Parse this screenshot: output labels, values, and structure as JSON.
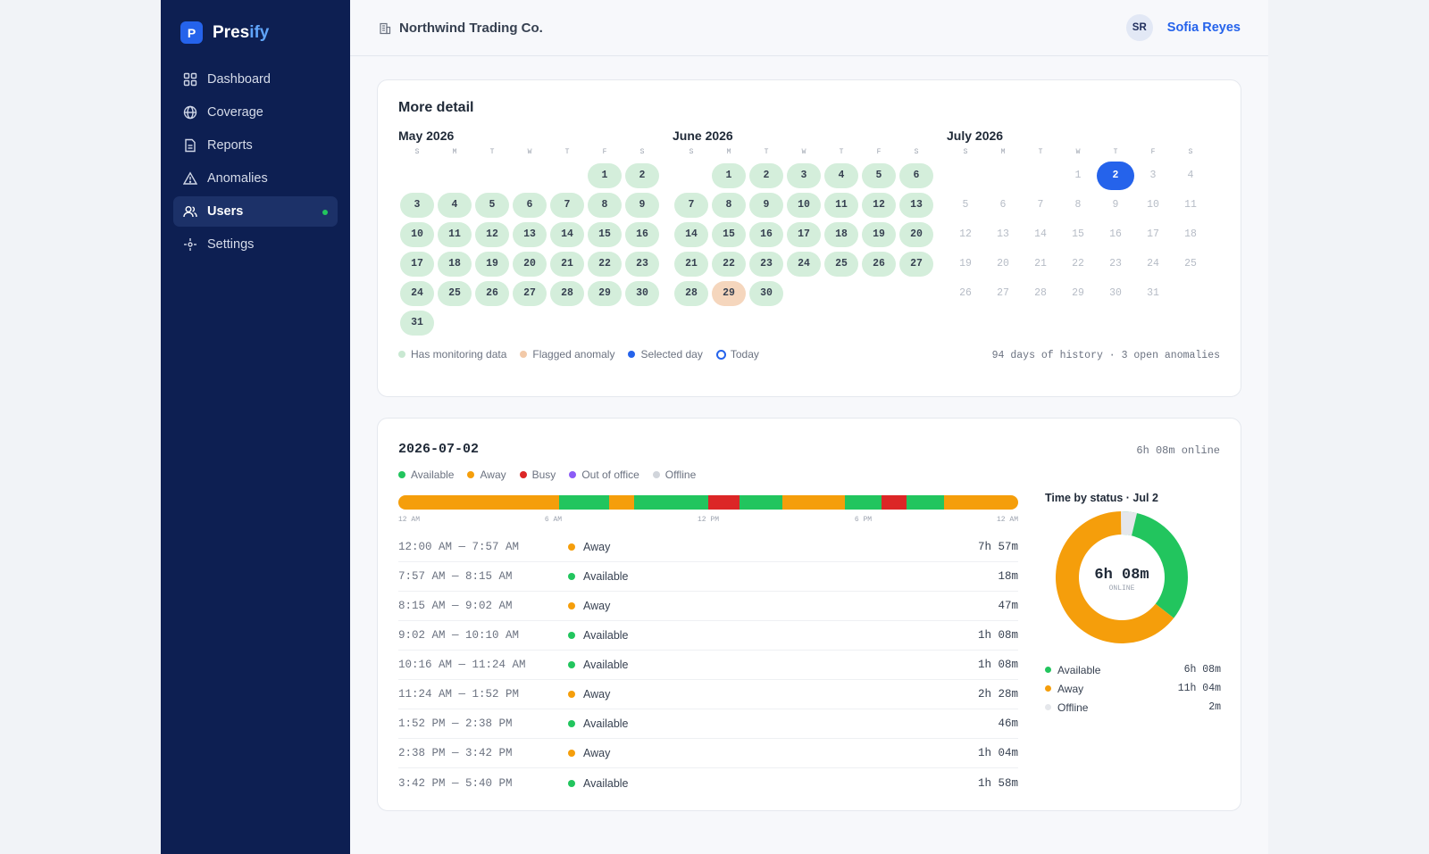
{
  "brand": {
    "name_main": "Pres",
    "name_accent": "ify",
    "badge": "P"
  },
  "nav": [
    {
      "label": "Dashboard",
      "icon": "grid-icon"
    },
    {
      "label": "Coverage",
      "icon": "globe-icon"
    },
    {
      "label": "Reports",
      "icon": "document-icon"
    },
    {
      "label": "Anomalies",
      "icon": "warning-icon"
    },
    {
      "label": "Users",
      "icon": "users-icon",
      "active": true
    },
    {
      "label": "Settings",
      "icon": "settings-icon"
    }
  ],
  "header": {
    "org": "Northwind Trading Co.",
    "avatar_initials": "SR",
    "user_name": "Sofia Reyes"
  },
  "calendar": {
    "title": "More detail",
    "weekdays": [
      "S",
      "M",
      "T",
      "W",
      "T",
      "F",
      "S"
    ],
    "months": [
      {
        "title": "May 2026",
        "start_offset": 5,
        "days": 31,
        "data_days": [
          1,
          2,
          3,
          4,
          5,
          6,
          7,
          8,
          9,
          10,
          11,
          12,
          13,
          14,
          15,
          16,
          17,
          18,
          19,
          20,
          21,
          22,
          23,
          24,
          25,
          26,
          27,
          28,
          29,
          30,
          31
        ],
        "flag_days": [],
        "selected_day": null
      },
      {
        "title": "June 2026",
        "start_offset": 1,
        "days": 30,
        "data_days": [
          1,
          2,
          3,
          4,
          5,
          6,
          7,
          8,
          9,
          10,
          11,
          12,
          13,
          14,
          15,
          16,
          17,
          18,
          19,
          20,
          21,
          22,
          23,
          24,
          25,
          26,
          27,
          28,
          30
        ],
        "flag_days": [
          29
        ],
        "selected_day": null
      },
      {
        "title": "July 2026",
        "start_offset": 3,
        "days": 31,
        "data_days": [],
        "flag_days": [],
        "selected_day": 2
      }
    ],
    "legend": [
      "Has monitoring data",
      "Flagged anomaly",
      "Selected day",
      "Today"
    ],
    "history_note": "94 days of history · 3 open anomalies"
  },
  "colors": {
    "available": "#22c55e",
    "away": "#f59e0b",
    "busy": "#dc2626",
    "out_of_office": "#8b5cf6",
    "offline": "#d1d5db",
    "data_dot": "#c9e8d2",
    "flag_dot": "#f2c9a8",
    "selected": "#2563eb"
  },
  "day": {
    "date": "2026-07-02",
    "online_summary": "6h 08m online",
    "status_legend": [
      "Available",
      "Away",
      "Busy",
      "Out of office",
      "Offline"
    ],
    "ticks": [
      "12 AM",
      "6 AM",
      "12 PM",
      "6 PM",
      "12 AM"
    ],
    "timeline": [
      {
        "status": "away",
        "start_min": 0,
        "end_min": 374
      },
      {
        "status": "available",
        "start_min": 374,
        "end_min": 490
      },
      {
        "status": "away",
        "start_min": 490,
        "end_min": 548
      },
      {
        "status": "available",
        "start_min": 548,
        "end_min": 720
      },
      {
        "status": "busy",
        "start_min": 720,
        "end_min": 792
      },
      {
        "status": "available",
        "start_min": 792,
        "end_min": 893
      },
      {
        "status": "away",
        "start_min": 893,
        "end_min": 1037
      },
      {
        "status": "available",
        "start_min": 1037,
        "end_min": 1123
      },
      {
        "status": "busy",
        "start_min": 1123,
        "end_min": 1181
      },
      {
        "status": "available",
        "start_min": 1181,
        "end_min": 1267
      },
      {
        "status": "away",
        "start_min": 1267,
        "end_min": 1440
      }
    ],
    "rows": [
      {
        "range": "12:00 AM — 7:57 AM",
        "status": "Away",
        "key": "away",
        "duration": "7h 57m"
      },
      {
        "range": "7:57 AM — 8:15 AM",
        "status": "Available",
        "key": "available",
        "duration": "18m"
      },
      {
        "range": "8:15 AM — 9:02 AM",
        "status": "Away",
        "key": "away",
        "duration": "47m"
      },
      {
        "range": "9:02 AM — 10:10 AM",
        "status": "Available",
        "key": "available",
        "duration": "1h 08m"
      },
      {
        "range": "10:16 AM — 11:24 AM",
        "status": "Available",
        "key": "available",
        "duration": "1h 08m"
      },
      {
        "range": "11:24 AM — 1:52 PM",
        "status": "Away",
        "key": "away",
        "duration": "2h 28m"
      },
      {
        "range": "1:52 PM — 2:38 PM",
        "status": "Available",
        "key": "available",
        "duration": "46m"
      },
      {
        "range": "2:38 PM — 3:42 PM",
        "status": "Away",
        "key": "away",
        "duration": "1h 04m"
      },
      {
        "range": "3:42 PM — 5:40 PM",
        "status": "Available",
        "key": "available",
        "duration": "1h 58m"
      }
    ]
  },
  "chart_data": {
    "type": "pie",
    "title": "Time by status · Jul 2",
    "center_value": "6h 08m",
    "center_label": "ONLINE",
    "series": [
      {
        "name": "Available",
        "display": "6h 08m",
        "minutes": 368,
        "key": "available"
      },
      {
        "name": "Away",
        "display": "11h 04m",
        "minutes": 664,
        "key": "away"
      },
      {
        "name": "Offline",
        "display": "2m",
        "minutes": 2,
        "key": "offline"
      }
    ]
  }
}
